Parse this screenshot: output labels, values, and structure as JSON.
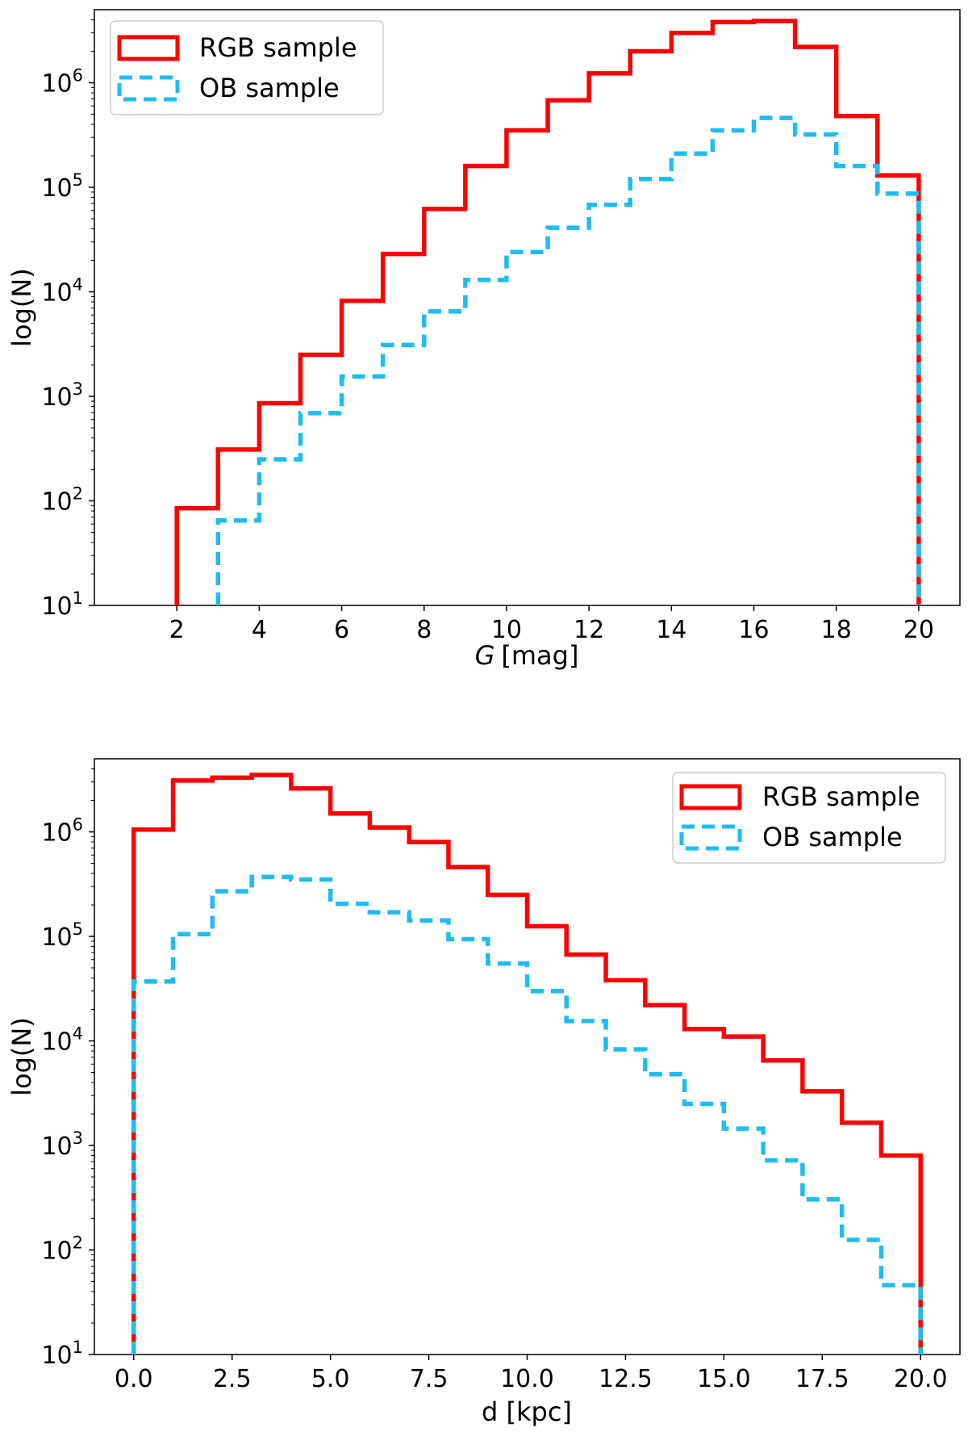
{
  "chart_data": [
    {
      "type": "histogram-step",
      "title": "",
      "xlabel": "G [mag]",
      "xlabel_main": "G",
      "xlabel_unit": "[mag]",
      "ylabel": "log(N)",
      "xlim": [
        0,
        21
      ],
      "ylim": [
        10,
        5000000
      ],
      "yscale": "log",
      "xticks": [
        2,
        4,
        6,
        8,
        10,
        12,
        14,
        16,
        18,
        20
      ],
      "xtick_labels": [
        "2",
        "4",
        "6",
        "8",
        "10",
        "12",
        "14",
        "16",
        "18",
        "20"
      ],
      "yticks": [
        10,
        100,
        1000,
        10000,
        100000,
        1000000
      ],
      "ytick_exponents": [
        "1",
        "2",
        "3",
        "4",
        "5",
        "6"
      ],
      "legend_position": "top-left",
      "series": [
        {
          "name": "RGB sample",
          "color": "#ff0000",
          "style": "solid",
          "edges": [
            2,
            3,
            4,
            5,
            6,
            7,
            8,
            9,
            10,
            11,
            12,
            13,
            14,
            15,
            16,
            17,
            18,
            19,
            20
          ],
          "values": [
            85,
            310,
            860,
            2500,
            8200,
            23000,
            62000,
            160000,
            350000,
            680000,
            1230000,
            2000000,
            3000000,
            3800000,
            3900000,
            2200000,
            480000,
            130000
          ]
        },
        {
          "name": "OB sample",
          "color": "#1ebcf0",
          "style": "dashed",
          "edges": [
            3,
            4,
            5,
            6,
            7,
            8,
            9,
            10,
            11,
            12,
            13,
            14,
            15,
            16,
            17,
            18,
            19,
            20
          ],
          "values": [
            65,
            250,
            690,
            1550,
            3100,
            6500,
            13000,
            24000,
            41000,
            68000,
            120000,
            210000,
            350000,
            460000,
            320000,
            160000,
            87000
          ]
        }
      ]
    },
    {
      "type": "histogram-step",
      "title": "",
      "xlabel": "d [kpc]",
      "ylabel": "log(N)",
      "xlim": [
        -1,
        21
      ],
      "ylim": [
        10,
        5000000
      ],
      "yscale": "log",
      "xticks": [
        0,
        2.5,
        5,
        7.5,
        10,
        12.5,
        15,
        17.5,
        20
      ],
      "xtick_labels": [
        "0.0",
        "2.5",
        "5.0",
        "7.5",
        "10.0",
        "12.5",
        "15.0",
        "17.5",
        "20.0"
      ],
      "yticks": [
        10,
        100,
        1000,
        10000,
        100000,
        1000000
      ],
      "ytick_exponents": [
        "1",
        "2",
        "3",
        "4",
        "5",
        "6"
      ],
      "legend_position": "top-right",
      "series": [
        {
          "name": "RGB sample",
          "color": "#ff0000",
          "style": "solid",
          "edges": [
            0,
            1,
            2,
            3,
            4,
            5,
            6,
            7,
            8,
            9,
            10,
            11,
            12,
            13,
            14,
            15,
            16,
            17,
            18,
            19,
            20
          ],
          "values": [
            1050000,
            3100000,
            3300000,
            3500000,
            2600000,
            1500000,
            1100000,
            800000,
            460000,
            250000,
            125000,
            67000,
            38000,
            22000,
            13000,
            11000,
            6500,
            3300,
            1650,
            800
          ]
        },
        {
          "name": "OB sample",
          "color": "#1ebcf0",
          "style": "dashed",
          "edges": [
            0,
            1,
            2,
            3,
            4,
            5,
            6,
            7,
            8,
            9,
            10,
            11,
            12,
            13,
            14,
            15,
            16,
            17,
            18,
            19,
            20
          ],
          "values": [
            37000,
            105000,
            270000,
            370000,
            350000,
            205000,
            170000,
            142000,
            94000,
            55000,
            30000,
            15500,
            8300,
            4800,
            2500,
            1450,
            720,
            305,
            125,
            46
          ]
        }
      ]
    }
  ]
}
